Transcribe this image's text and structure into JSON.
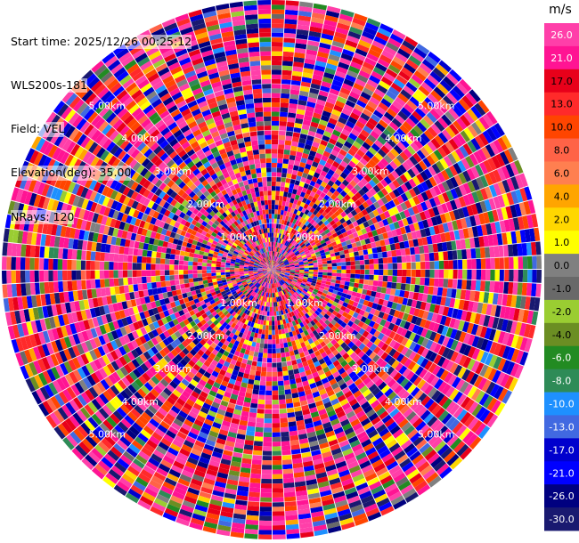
{
  "header": {
    "start_time": "Start time: 2025/12/26 00:25:12",
    "instrument": "WLS200s-181",
    "field": "Field: VEL",
    "elevation": "Elevation(deg): 35.00",
    "nrays": "NRays: 120"
  },
  "chart_data": {
    "type": "heatmap",
    "subtype": "ppi-polar",
    "field": "VEL",
    "nrays": 120,
    "range_rings_km": [
      1,
      2,
      3,
      4,
      5
    ],
    "ring_labels": [
      "1.00km",
      "2.00km",
      "3.00km",
      "4.00km",
      "5.00km"
    ],
    "colorbar": {
      "unit": "m/s",
      "tick_labels": [
        "26.0",
        "21.0",
        "17.0",
        "13.0",
        "10.0",
        "8.0",
        "6.0",
        "4.0",
        "2.0",
        "1.0",
        "0.0",
        "-1.0",
        "-2.0",
        "-4.0",
        "-6.0",
        "-8.0",
        "-10.0",
        "-13.0",
        "-17.0",
        "-21.0",
        "-26.0",
        "-30.0"
      ],
      "bins": [
        {
          "from": 26,
          "to": 30,
          "color": "#ff3fa9"
        },
        {
          "from": 21,
          "to": 26,
          "color": "#ff1493"
        },
        {
          "from": 17,
          "to": 21,
          "color": "#e8001a"
        },
        {
          "from": 13,
          "to": 17,
          "color": "#ff2a2a"
        },
        {
          "from": 10,
          "to": 13,
          "color": "#ff4500"
        },
        {
          "from": 8,
          "to": 10,
          "color": "#ff6347"
        },
        {
          "from": 6,
          "to": 8,
          "color": "#ff7f50"
        },
        {
          "from": 4,
          "to": 6,
          "color": "#ffa500"
        },
        {
          "from": 2,
          "to": 4,
          "color": "#ffd700"
        },
        {
          "from": 1,
          "to": 2,
          "color": "#ffff00"
        },
        {
          "from": 0,
          "to": 1,
          "color": "#808080"
        },
        {
          "from": -1,
          "to": 0,
          "color": "#696969"
        },
        {
          "from": -2,
          "to": -1,
          "color": "#9acd32"
        },
        {
          "from": -4,
          "to": -2,
          "color": "#6b8e23"
        },
        {
          "from": -6,
          "to": -4,
          "color": "#228b22"
        },
        {
          "from": -8,
          "to": -6,
          "color": "#2e8b57"
        },
        {
          "from": -10,
          "to": -8,
          "color": "#1e90ff"
        },
        {
          "from": -13,
          "to": -10,
          "color": "#4169e1"
        },
        {
          "from": -17,
          "to": -13,
          "color": "#0000cd"
        },
        {
          "from": -21,
          "to": -17,
          "color": "#0000ff"
        },
        {
          "from": -26,
          "to": -21,
          "color": "#000080"
        },
        {
          "from": -30,
          "to": -26,
          "color": "#191970"
        }
      ]
    }
  }
}
